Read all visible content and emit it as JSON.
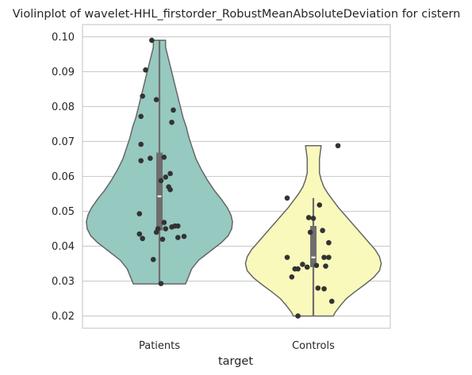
{
  "chart_data": {
    "type": "violin",
    "title": "Violinplot of wavelet-HHL_firstorder_RobustMeanAbsoluteDeviation for cistern",
    "xlabel": "target",
    "ylabel": "",
    "categories": [
      "Patients",
      "Controls"
    ],
    "ylim": [
      0.0165,
      0.1035
    ],
    "yticks": [
      0.02,
      0.03,
      0.04,
      0.05,
      0.06,
      0.07,
      0.08,
      0.09,
      0.1
    ],
    "ytick_labels": [
      "0.02",
      "0.03",
      "0.04",
      "0.05",
      "0.06",
      "0.07",
      "0.08",
      "0.09",
      "0.10"
    ],
    "grid": "horizontal",
    "colors": {
      "Patients": "#96c9c0",
      "Controls": "#f8f9bb",
      "outline": "#666666",
      "points": "#333333",
      "box": "#6e6e6e",
      "grid": "#cccccc"
    },
    "violins": [
      {
        "category": "Patients",
        "profile_y": [
          0.0292,
          0.031,
          0.0335,
          0.036,
          0.0385,
          0.041,
          0.043,
          0.045,
          0.047,
          0.049,
          0.051,
          0.0535,
          0.056,
          0.059,
          0.062,
          0.065,
          0.068,
          0.071,
          0.074,
          0.077,
          0.08,
          0.083,
          0.086,
          0.089,
          0.092,
          0.095,
          0.097,
          0.099
        ],
        "profile_w": [
          0.3,
          0.33,
          0.37,
          0.45,
          0.58,
          0.71,
          0.79,
          0.83,
          0.84,
          0.82,
          0.78,
          0.71,
          0.63,
          0.55,
          0.48,
          0.42,
          0.38,
          0.34,
          0.31,
          0.27,
          0.24,
          0.21,
          0.18,
          0.15,
          0.12,
          0.09,
          0.07,
          0.07
        ],
        "min": 0.0292,
        "q1": 0.0445,
        "median": 0.0543,
        "q3": 0.0668,
        "max": 0.099,
        "points": [
          {
            "x": -0.05,
            "y": 0.099
          },
          {
            "x": -0.09,
            "y": 0.0905
          },
          {
            "x": -0.11,
            "y": 0.083
          },
          {
            "x": -0.02,
            "y": 0.082
          },
          {
            "x": 0.09,
            "y": 0.079
          },
          {
            "x": -0.12,
            "y": 0.0772
          },
          {
            "x": 0.08,
            "y": 0.0755
          },
          {
            "x": -0.12,
            "y": 0.0692
          },
          {
            "x": 0.03,
            "y": 0.0655
          },
          {
            "x": -0.06,
            "y": 0.0652
          },
          {
            "x": -0.12,
            "y": 0.0645
          },
          {
            "x": 0.07,
            "y": 0.0608
          },
          {
            "x": 0.04,
            "y": 0.0598
          },
          {
            "x": 0.01,
            "y": 0.0588
          },
          {
            "x": 0.06,
            "y": 0.057
          },
          {
            "x": 0.07,
            "y": 0.0562
          },
          {
            "x": -0.13,
            "y": 0.0493
          },
          {
            "x": 0.03,
            "y": 0.0468
          },
          {
            "x": 0.1,
            "y": 0.0458
          },
          {
            "x": 0.12,
            "y": 0.0458
          },
          {
            "x": 0.08,
            "y": 0.0455
          },
          {
            "x": 0.04,
            "y": 0.045
          },
          {
            "x": -0.01,
            "y": 0.045
          },
          {
            "x": -0.02,
            "y": 0.044
          },
          {
            "x": -0.13,
            "y": 0.0435
          },
          {
            "x": 0.16,
            "y": 0.0428
          },
          {
            "x": 0.12,
            "y": 0.0425
          },
          {
            "x": -0.11,
            "y": 0.0422
          },
          {
            "x": 0.02,
            "y": 0.042
          },
          {
            "x": -0.04,
            "y": 0.0362
          },
          {
            "x": 0.01,
            "y": 0.0293
          }
        ]
      },
      {
        "category": "Controls",
        "profile_y": [
          0.02,
          0.021,
          0.023,
          0.025,
          0.027,
          0.029,
          0.031,
          0.033,
          0.035,
          0.037,
          0.039,
          0.041,
          0.043,
          0.045,
          0.047,
          0.049,
          0.051,
          0.053,
          0.055,
          0.057,
          0.059,
          0.061,
          0.063,
          0.065,
          0.067,
          0.0688
        ],
        "profile_w": [
          0.23,
          0.25,
          0.31,
          0.38,
          0.48,
          0.59,
          0.69,
          0.76,
          0.78,
          0.76,
          0.71,
          0.64,
          0.57,
          0.5,
          0.43,
          0.36,
          0.29,
          0.23,
          0.17,
          0.12,
          0.09,
          0.07,
          0.07,
          0.07,
          0.08,
          0.09
        ],
        "min": 0.02,
        "q1": 0.034,
        "median": 0.0368,
        "q3": 0.0458,
        "max": 0.0538,
        "points": [
          {
            "x": 0.16,
            "y": 0.0688
          },
          {
            "x": -0.17,
            "y": 0.0538
          },
          {
            "x": 0.04,
            "y": 0.0518
          },
          {
            "x": -0.03,
            "y": 0.0482
          },
          {
            "x": 0.0,
            "y": 0.048
          },
          {
            "x": 0.06,
            "y": 0.0445
          },
          {
            "x": -0.02,
            "y": 0.044
          },
          {
            "x": 0.1,
            "y": 0.041
          },
          {
            "x": -0.17,
            "y": 0.0368
          },
          {
            "x": 0.07,
            "y": 0.0368
          },
          {
            "x": 0.1,
            "y": 0.0368
          },
          {
            "x": -0.07,
            "y": 0.0348
          },
          {
            "x": 0.08,
            "y": 0.0343
          },
          {
            "x": -0.04,
            "y": 0.034
          },
          {
            "x": -0.12,
            "y": 0.0335
          },
          {
            "x": -0.1,
            "y": 0.0335
          },
          {
            "x": 0.02,
            "y": 0.0345
          },
          {
            "x": -0.14,
            "y": 0.0312
          },
          {
            "x": 0.03,
            "y": 0.028
          },
          {
            "x": 0.07,
            "y": 0.0278
          },
          {
            "x": 0.12,
            "y": 0.0242
          },
          {
            "x": -0.1,
            "y": 0.02
          }
        ]
      }
    ]
  }
}
